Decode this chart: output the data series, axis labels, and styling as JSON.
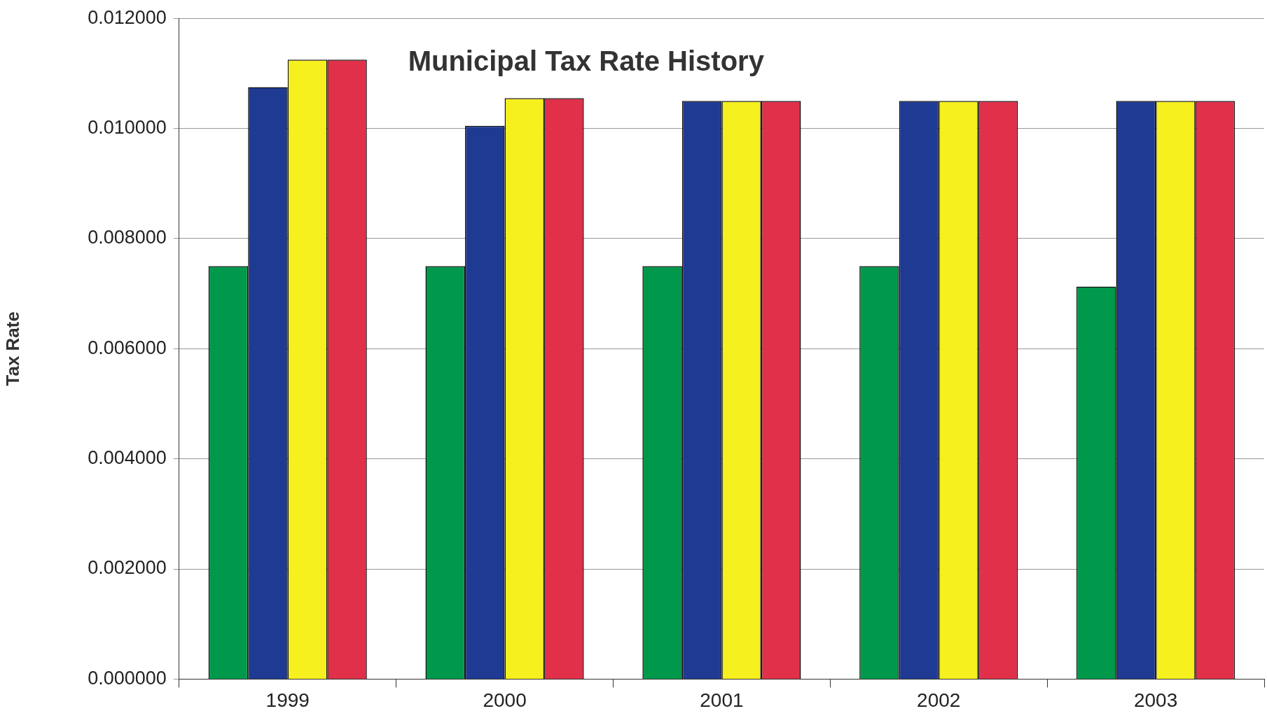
{
  "chart_data": {
    "type": "bar",
    "title": "Municipal Tax Rate History",
    "ylabel": "Tax Rate",
    "categories": [
      "1999",
      "2000",
      "2001",
      "2002",
      "2003"
    ],
    "series": [
      {
        "color": "#00994c",
        "values": [
          0.0075,
          0.0075,
          0.0075,
          0.0075,
          0.00713
        ]
      },
      {
        "color": "#1f3a93",
        "values": [
          0.01075,
          0.01005,
          0.0105,
          0.0105,
          0.0105
        ]
      },
      {
        "color": "#f5f01e",
        "values": [
          0.01125,
          0.01055,
          0.0105,
          0.0105,
          0.0105
        ]
      },
      {
        "color": "#e0304a",
        "values": [
          0.01125,
          0.01055,
          0.0105,
          0.0105,
          0.0105
        ]
      }
    ],
    "ylim": [
      0,
      0.012
    ],
    "yticks": [
      {
        "value": 0,
        "label": "0.000000"
      },
      {
        "value": 0.002,
        "label": "0.002000"
      },
      {
        "value": 0.004,
        "label": "0.004000"
      },
      {
        "value": 0.006,
        "label": "0.006000"
      },
      {
        "value": 0.008,
        "label": "0.008000"
      },
      {
        "value": 0.01,
        "label": "0.010000"
      },
      {
        "value": 0.012,
        "label": "0.012000"
      }
    ],
    "grid": "y",
    "legend": false
  }
}
